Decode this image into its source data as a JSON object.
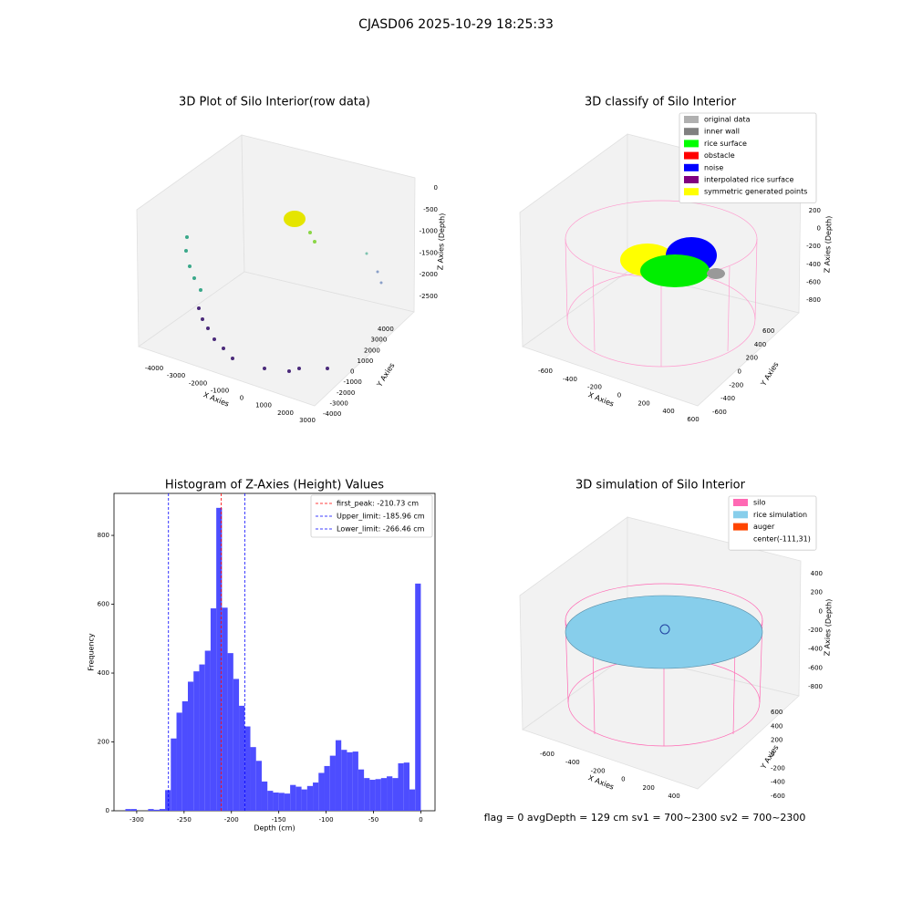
{
  "title": "CJASD06 2025-10-29 18:25:33",
  "footer": "flag = 0     avgDepth = 129 cm  sv1 = 700~2300  sv2 = 700~2300",
  "chart_data": [
    {
      "type": "scatter3d",
      "title": "3D Plot of Silo Interior(row data)",
      "xlabel": "X Axies",
      "ylabel": "Y Axies",
      "zlabel": "Z Axies (Depth)",
      "xticks": [
        -4000,
        -3000,
        -2000,
        -1000,
        0,
        1000,
        2000,
        3000
      ],
      "yticks": [
        -4000,
        -3000,
        -2000,
        -1000,
        0,
        1000,
        2000,
        3000,
        4000
      ],
      "zticks": [
        0,
        -500,
        -1000,
        -1500,
        -2000,
        -2500
      ]
    },
    {
      "type": "scatter3d",
      "title": "3D classify of Silo Interior",
      "xlabel": "X Axies",
      "ylabel": "Y Axies",
      "zlabel": "Z Axies (Depth)",
      "xticks": [
        -600,
        -400,
        -200,
        0,
        200,
        400,
        600
      ],
      "yticks": [
        -600,
        -400,
        -200,
        0,
        200,
        400,
        600
      ],
      "zticks": [
        200,
        0,
        -200,
        -400,
        -600,
        -800
      ],
      "legend": [
        {
          "name": "original data",
          "color": "#b0b0b0"
        },
        {
          "name": "inner wall",
          "color": "#808080"
        },
        {
          "name": "rice surface",
          "color": "#00ff00"
        },
        {
          "name": "obstacle",
          "color": "#ff0000"
        },
        {
          "name": "noise",
          "color": "#0000ff"
        },
        {
          "name": "interpolated rice surface",
          "color": "#800080"
        },
        {
          "name": "symmetric generated points",
          "color": "#ffff00"
        }
      ]
    },
    {
      "type": "histogram",
      "title": "Histogram of Z-Axies (Height) Values",
      "xlabel": "Depth (cm)",
      "ylabel": "Frequency",
      "color": "#4d4dff",
      "bins": [
        -312,
        -306,
        -300,
        -294,
        -288,
        -282,
        -276,
        -270,
        -264,
        -258,
        -252,
        -246,
        -240,
        -234,
        -228,
        -222,
        -216,
        -210,
        -204,
        -198,
        -192,
        -186,
        -180,
        -174,
        -168,
        -162,
        -156,
        -150,
        -144,
        -138,
        -132,
        -126,
        -120,
        -114,
        -108,
        -102,
        -96,
        -90,
        -84,
        -78,
        -72,
        -66,
        -60,
        -54,
        -48,
        -42,
        -36,
        -30,
        -24,
        -18,
        -12,
        -6,
        0
      ],
      "values": [
        5,
        5,
        0,
        0,
        5,
        3,
        5,
        60,
        210,
        285,
        318,
        375,
        405,
        425,
        465,
        588,
        880,
        590,
        458,
        383,
        305,
        245,
        185,
        145,
        85,
        58,
        53,
        52,
        50,
        75,
        70,
        62,
        72,
        82,
        110,
        130,
        160,
        205,
        177,
        170,
        172,
        120,
        95,
        90,
        92,
        95,
        100,
        95,
        138,
        140,
        62,
        660
      ],
      "xlim": [
        -324,
        15
      ],
      "ylim": [
        0,
        922
      ],
      "xticks": [
        -300,
        -250,
        -200,
        -150,
        -100,
        -50,
        0
      ],
      "yticks": [
        0,
        200,
        400,
        600,
        800
      ],
      "lines": [
        {
          "label": "first_peak: -210.73 cm",
          "value": -210.73,
          "color": "#ff0000"
        },
        {
          "label": "Upper_limit: -185.96 cm",
          "value": -185.96,
          "color": "#0000ff"
        },
        {
          "label": "Lower_limit: -266.46 cm",
          "value": -266.46,
          "color": "#0000ff"
        }
      ],
      "legend_corner": "upper right"
    },
    {
      "type": "surface3d",
      "title": "3D simulation of Silo Interior",
      "xlabel": "X Axies",
      "ylabel": "Y Axies",
      "zlabel": "Z Axies (Depth)",
      "xticks": [
        -600,
        -400,
        -200,
        0,
        200,
        400
      ],
      "yticks": [
        -600,
        -400,
        -200,
        0,
        200,
        400,
        600
      ],
      "zticks": [
        400,
        200,
        0,
        -200,
        -400,
        -600,
        -800
      ],
      "legend": [
        {
          "name": "silo",
          "color": "#ff69b4"
        },
        {
          "name": "rice simulation",
          "color": "#87ceeb"
        },
        {
          "name": "auger",
          "color": "#ff4500"
        },
        {
          "name": "center(-111,31)"
        }
      ]
    }
  ]
}
